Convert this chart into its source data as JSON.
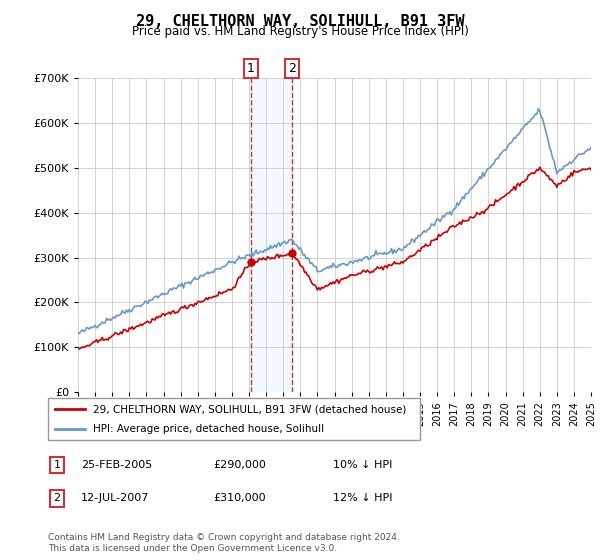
{
  "title": "29, CHELTHORN WAY, SOLIHULL, B91 3FW",
  "subtitle": "Price paid vs. HM Land Registry's House Price Index (HPI)",
  "legend_label_red": "29, CHELTHORN WAY, SOLIHULL, B91 3FW (detached house)",
  "legend_label_blue": "HPI: Average price, detached house, Solihull",
  "transaction1_date": "25-FEB-2005",
  "transaction1_price": "£290,000",
  "transaction1_hpi": "10% ↓ HPI",
  "transaction2_date": "12-JUL-2007",
  "transaction2_price": "£310,000",
  "transaction2_hpi": "12% ↓ HPI",
  "footnote": "Contains HM Land Registry data © Crown copyright and database right 2024.\nThis data is licensed under the Open Government Licence v3.0.",
  "ylim_min": 0,
  "ylim_max": 700000,
  "color_red": "#cc0000",
  "color_blue": "#6699cc",
  "color_shading": "#ddeeff",
  "background_color": "#ffffff",
  "t1_year": 2005.12,
  "t2_year": 2007.54,
  "t1_price": 290000,
  "t2_price": 310000
}
